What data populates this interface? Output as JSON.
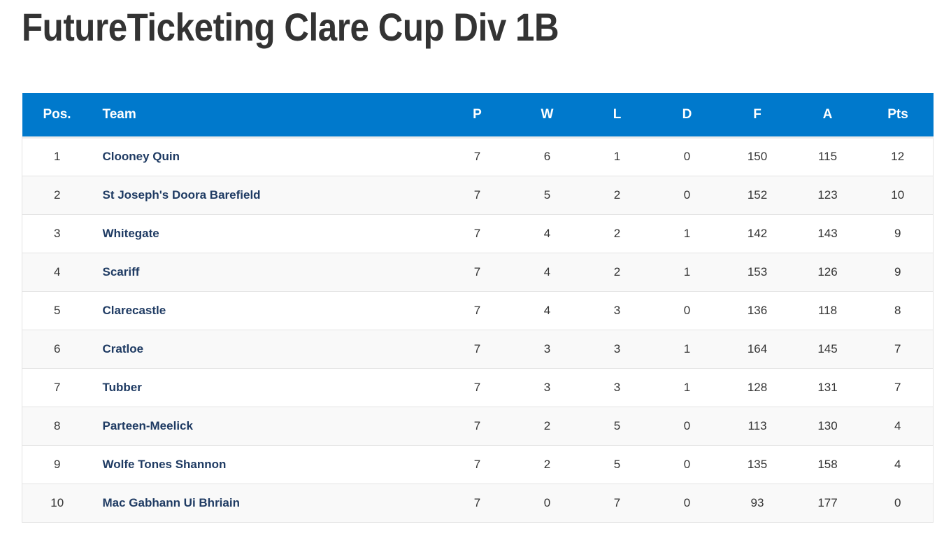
{
  "page": {
    "title": "FutureTicketing Clare Cup Div 1B"
  },
  "table": {
    "headers": {
      "pos": "Pos.",
      "team": "Team",
      "p": "P",
      "w": "W",
      "l": "L",
      "d": "D",
      "f": "F",
      "a": "A",
      "pts": "Pts"
    },
    "rows": [
      {
        "pos": "1",
        "team": "Clooney Quin",
        "p": "7",
        "w": "6",
        "l": "1",
        "d": "0",
        "f": "150",
        "a": "115",
        "pts": "12"
      },
      {
        "pos": "2",
        "team": "St Joseph's Doora Barefield",
        "p": "7",
        "w": "5",
        "l": "2",
        "d": "0",
        "f": "152",
        "a": "123",
        "pts": "10"
      },
      {
        "pos": "3",
        "team": "Whitegate",
        "p": "7",
        "w": "4",
        "l": "2",
        "d": "1",
        "f": "142",
        "a": "143",
        "pts": "9"
      },
      {
        "pos": "4",
        "team": "Scariff",
        "p": "7",
        "w": "4",
        "l": "2",
        "d": "1",
        "f": "153",
        "a": "126",
        "pts": "9"
      },
      {
        "pos": "5",
        "team": "Clarecastle",
        "p": "7",
        "w": "4",
        "l": "3",
        "d": "0",
        "f": "136",
        "a": "118",
        "pts": "8"
      },
      {
        "pos": "6",
        "team": "Cratloe",
        "p": "7",
        "w": "3",
        "l": "3",
        "d": "1",
        "f": "164",
        "a": "145",
        "pts": "7"
      },
      {
        "pos": "7",
        "team": "Tubber",
        "p": "7",
        "w": "3",
        "l": "3",
        "d": "1",
        "f": "128",
        "a": "131",
        "pts": "7"
      },
      {
        "pos": "8",
        "team": "Parteen-Meelick",
        "p": "7",
        "w": "2",
        "l": "5",
        "d": "0",
        "f": "113",
        "a": "130",
        "pts": "4"
      },
      {
        "pos": "9",
        "team": "Wolfe Tones Shannon",
        "p": "7",
        "w": "2",
        "l": "5",
        "d": "0",
        "f": "135",
        "a": "158",
        "pts": "4"
      },
      {
        "pos": "10",
        "team": "Mac Gabhann Ui Bhriain",
        "p": "7",
        "w": "0",
        "l": "7",
        "d": "0",
        "f": "93",
        "a": "177",
        "pts": "0"
      }
    ]
  },
  "colors": {
    "header_bg": "#0079cc",
    "header_text": "#ffffff",
    "team_text": "#1f3b63",
    "body_text": "#333333",
    "row_alt": "#f9f9f9"
  }
}
